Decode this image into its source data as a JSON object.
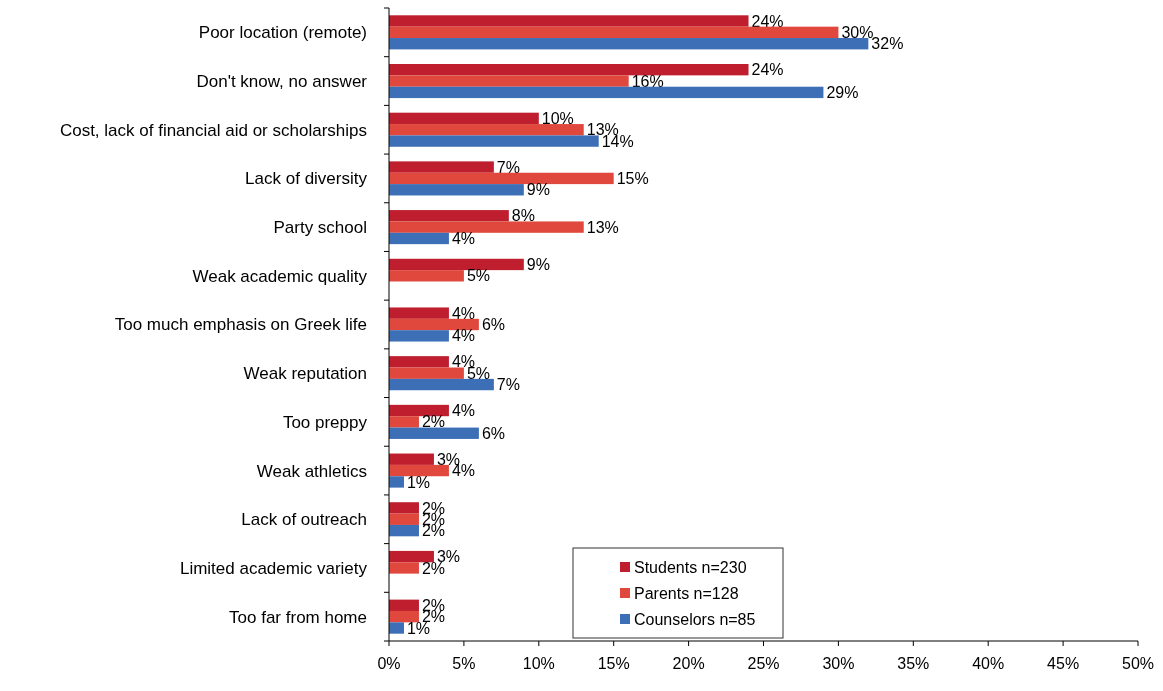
{
  "chart_data": {
    "type": "bar",
    "orientation": "horizontal",
    "categories": [
      "Poor location (remote)",
      "Don't know, no answer",
      "Cost, lack of financial aid or scholarships",
      "Lack of diversity",
      "Party school",
      "Weak academic quality",
      "Too much emphasis on Greek life",
      "Weak reputation",
      "Too preppy",
      "Weak athletics",
      "Lack of outreach",
      "Limited academic variety",
      "Too far from home"
    ],
    "series": [
      {
        "name": "Students n=230",
        "color": "#be1e2d",
        "values": [
          24,
          24,
          10,
          7,
          8,
          9,
          4,
          4,
          4,
          3,
          2,
          3,
          2
        ],
        "value_labels": [
          "24%",
          "24%",
          "10%",
          "7%",
          "8%",
          "9%",
          "4%",
          "4%",
          "4%",
          "3%",
          "2%",
          "3%",
          "2%"
        ]
      },
      {
        "name": "Parents n=128",
        "color": "#e0483e",
        "values": [
          30,
          16,
          13,
          15,
          13,
          5,
          6,
          5,
          2,
          4,
          2,
          2,
          2
        ],
        "value_labels": [
          "30%",
          "16%",
          "13%",
          "15%",
          "13%",
          "5%",
          "6%",
          "5%",
          "2%",
          "4%",
          "2%",
          "2%",
          "2%"
        ]
      },
      {
        "name": "Counselors n=85",
        "color": "#3d6fb6",
        "values": [
          32,
          29,
          14,
          9,
          4,
          null,
          4,
          7,
          6,
          1,
          2,
          null,
          1
        ],
        "value_labels": [
          "32%",
          "29%",
          "14%",
          "9%",
          "4%",
          null,
          "4%",
          "7%",
          "6%",
          "1%",
          "2%",
          null,
          "1%"
        ]
      }
    ],
    "xlim": [
      0,
      50
    ],
    "xticks": [
      {
        "value": 0,
        "label": "0%"
      },
      {
        "value": 5,
        "label": "5%"
      },
      {
        "value": 10,
        "label": "10%"
      },
      {
        "value": 15,
        "label": "15%"
      },
      {
        "value": 20,
        "label": "20%"
      },
      {
        "value": 25,
        "label": "25%"
      },
      {
        "value": 30,
        "label": "30%"
      },
      {
        "value": 35,
        "label": "35%"
      },
      {
        "value": 40,
        "label": "40%"
      },
      {
        "value": 45,
        "label": "45%"
      },
      {
        "value": 50,
        "label": "50%"
      }
    ],
    "legend": "bottom",
    "grid": false
  }
}
